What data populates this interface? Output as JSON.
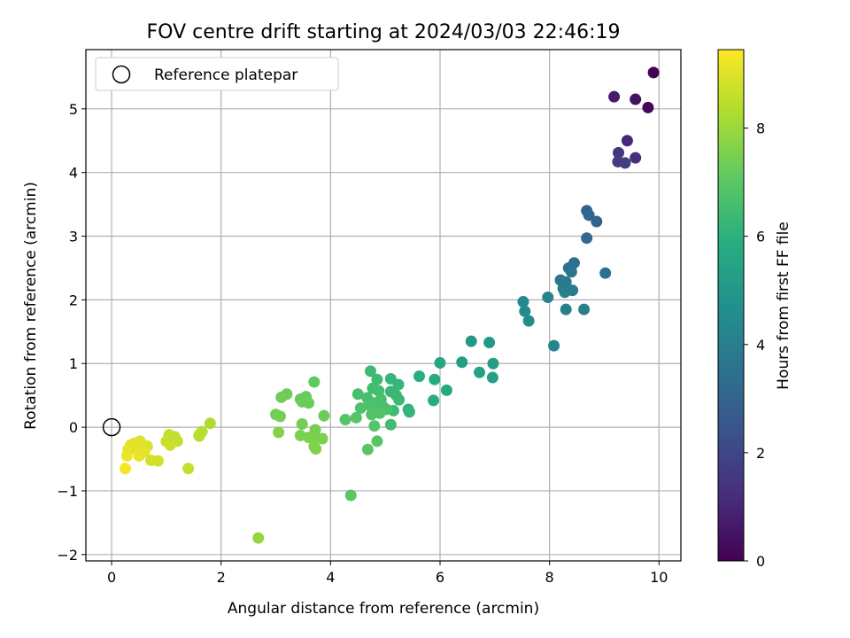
{
  "chart_data": {
    "type": "scatter",
    "title": "FOV centre drift starting at 2024/03/03 22:46:19",
    "xlabel": "Angular distance from reference (arcmin)",
    "ylabel": "Rotation from reference (arcmin)",
    "xlim": [
      -0.47,
      10.4
    ],
    "ylim": [
      -2.1,
      5.93
    ],
    "xticks": [
      0,
      2,
      4,
      6,
      8,
      10
    ],
    "yticks": [
      -2,
      -1,
      0,
      1,
      2,
      3,
      4,
      5
    ],
    "xtick_labels": [
      "0",
      "2",
      "4",
      "6",
      "8",
      "10"
    ],
    "ytick_labels": [
      "−2",
      "−1",
      "0",
      "1",
      "2",
      "3",
      "4",
      "5"
    ],
    "grid": true,
    "legend_position": "top-left",
    "legend": {
      "label": "Reference platepar",
      "marker": "open-circle"
    },
    "reference_point": {
      "x": 0,
      "y": 0
    },
    "colorbar": {
      "label": "Hours from first FF file",
      "colormap": "viridis",
      "range": [
        0,
        9.45
      ],
      "ticks": [
        0,
        2,
        4,
        6,
        8
      ],
      "tick_labels": [
        "0",
        "2",
        "4",
        "6",
        "8"
      ]
    },
    "points": [
      {
        "x": 9.9,
        "y": 5.57,
        "h": 0.05
      },
      {
        "x": 9.8,
        "y": 5.02,
        "h": 0.2
      },
      {
        "x": 9.57,
        "y": 5.15,
        "h": 0.45
      },
      {
        "x": 9.18,
        "y": 5.19,
        "h": 0.75
      },
      {
        "x": 9.42,
        "y": 4.5,
        "h": 1.05
      },
      {
        "x": 9.57,
        "y": 4.23,
        "h": 1.25
      },
      {
        "x": 9.26,
        "y": 4.31,
        "h": 1.45
      },
      {
        "x": 9.25,
        "y": 4.17,
        "h": 1.6
      },
      {
        "x": 9.38,
        "y": 4.15,
        "h": 1.75
      },
      {
        "x": 8.68,
        "y": 3.4,
        "h": 3.0
      },
      {
        "x": 8.72,
        "y": 3.33,
        "h": 3.1
      },
      {
        "x": 8.86,
        "y": 3.23,
        "h": 3.05
      },
      {
        "x": 8.68,
        "y": 2.97,
        "h": 3.25
      },
      {
        "x": 8.45,
        "y": 2.58,
        "h": 3.45
      },
      {
        "x": 8.35,
        "y": 2.5,
        "h": 3.55
      },
      {
        "x": 9.02,
        "y": 2.42,
        "h": 3.5
      },
      {
        "x": 8.4,
        "y": 2.44,
        "h": 3.65
      },
      {
        "x": 8.2,
        "y": 2.31,
        "h": 3.75
      },
      {
        "x": 8.3,
        "y": 2.28,
        "h": 3.8
      },
      {
        "x": 8.25,
        "y": 2.18,
        "h": 3.9
      },
      {
        "x": 8.42,
        "y": 2.15,
        "h": 3.95
      },
      {
        "x": 8.28,
        "y": 2.12,
        "h": 4.0
      },
      {
        "x": 8.3,
        "y": 1.85,
        "h": 4.05
      },
      {
        "x": 8.63,
        "y": 1.85,
        "h": 4.1
      },
      {
        "x": 7.97,
        "y": 2.04,
        "h": 4.2
      },
      {
        "x": 8.08,
        "y": 1.28,
        "h": 4.25
      },
      {
        "x": 7.52,
        "y": 1.97,
        "h": 4.4
      },
      {
        "x": 7.55,
        "y": 1.82,
        "h": 4.5
      },
      {
        "x": 7.62,
        "y": 1.67,
        "h": 4.6
      },
      {
        "x": 6.57,
        "y": 1.35,
        "h": 5.0
      },
      {
        "x": 6.9,
        "y": 1.33,
        "h": 5.0
      },
      {
        "x": 6.4,
        "y": 1.02,
        "h": 5.3
      },
      {
        "x": 6.97,
        "y": 1.0,
        "h": 5.25
      },
      {
        "x": 6.72,
        "y": 0.86,
        "h": 5.4
      },
      {
        "x": 6.96,
        "y": 0.78,
        "h": 5.35
      },
      {
        "x": 6.0,
        "y": 1.01,
        "h": 5.6
      },
      {
        "x": 5.9,
        "y": 0.75,
        "h": 5.8
      },
      {
        "x": 6.12,
        "y": 0.58,
        "h": 5.7
      },
      {
        "x": 5.88,
        "y": 0.42,
        "h": 5.85
      },
      {
        "x": 5.62,
        "y": 0.8,
        "h": 5.9
      },
      {
        "x": 5.42,
        "y": 0.28,
        "h": 6.1
      },
      {
        "x": 5.44,
        "y": 0.24,
        "h": 6.15
      },
      {
        "x": 5.1,
        "y": 0.76,
        "h": 6.2
      },
      {
        "x": 5.24,
        "y": 0.67,
        "h": 6.25
      },
      {
        "x": 5.1,
        "y": 0.56,
        "h": 6.3
      },
      {
        "x": 5.2,
        "y": 0.5,
        "h": 6.3
      },
      {
        "x": 5.25,
        "y": 0.43,
        "h": 6.35
      },
      {
        "x": 5.15,
        "y": 0.26,
        "h": 6.4
      },
      {
        "x": 5.1,
        "y": 0.04,
        "h": 6.5
      },
      {
        "x": 4.73,
        "y": 0.88,
        "h": 6.4
      },
      {
        "x": 4.85,
        "y": 0.75,
        "h": 6.45
      },
      {
        "x": 4.77,
        "y": 0.61,
        "h": 6.5
      },
      {
        "x": 4.88,
        "y": 0.57,
        "h": 6.55
      },
      {
        "x": 4.5,
        "y": 0.52,
        "h": 6.6
      },
      {
        "x": 4.67,
        "y": 0.46,
        "h": 6.6
      },
      {
        "x": 4.92,
        "y": 0.44,
        "h": 6.6
      },
      {
        "x": 4.8,
        "y": 0.38,
        "h": 6.65
      },
      {
        "x": 4.7,
        "y": 0.35,
        "h": 6.7
      },
      {
        "x": 4.95,
        "y": 0.33,
        "h": 6.65
      },
      {
        "x": 4.55,
        "y": 0.3,
        "h": 6.75
      },
      {
        "x": 4.85,
        "y": 0.3,
        "h": 6.7
      },
      {
        "x": 5.02,
        "y": 0.28,
        "h": 6.7
      },
      {
        "x": 4.9,
        "y": 0.22,
        "h": 6.8
      },
      {
        "x": 4.75,
        "y": 0.2,
        "h": 6.8
      },
      {
        "x": 4.47,
        "y": 0.15,
        "h": 6.85
      },
      {
        "x": 4.27,
        "y": 0.12,
        "h": 6.9
      },
      {
        "x": 4.8,
        "y": 0.02,
        "h": 6.85
      },
      {
        "x": 4.85,
        "y": -0.22,
        "h": 6.9
      },
      {
        "x": 4.68,
        "y": -0.35,
        "h": 6.95
      },
      {
        "x": 4.37,
        "y": -1.07,
        "h": 7.0
      },
      {
        "x": 3.7,
        "y": 0.71,
        "h": 7.1
      },
      {
        "x": 3.55,
        "y": 0.48,
        "h": 7.2
      },
      {
        "x": 3.45,
        "y": 0.44,
        "h": 7.2
      },
      {
        "x": 3.48,
        "y": 0.4,
        "h": 7.25
      },
      {
        "x": 3.6,
        "y": 0.38,
        "h": 7.25
      },
      {
        "x": 3.2,
        "y": 0.52,
        "h": 7.3
      },
      {
        "x": 3.1,
        "y": 0.47,
        "h": 7.35
      },
      {
        "x": 3.0,
        "y": 0.2,
        "h": 7.4
      },
      {
        "x": 3.08,
        "y": 0.17,
        "h": 7.4
      },
      {
        "x": 3.88,
        "y": 0.18,
        "h": 7.3
      },
      {
        "x": 3.48,
        "y": 0.05,
        "h": 7.4
      },
      {
        "x": 3.72,
        "y": -0.04,
        "h": 7.45
      },
      {
        "x": 3.45,
        "y": -0.13,
        "h": 7.5
      },
      {
        "x": 3.6,
        "y": -0.16,
        "h": 7.5
      },
      {
        "x": 3.68,
        "y": -0.18,
        "h": 7.55
      },
      {
        "x": 3.85,
        "y": -0.18,
        "h": 7.55
      },
      {
        "x": 3.7,
        "y": -0.3,
        "h": 7.6
      },
      {
        "x": 3.73,
        "y": -0.34,
        "h": 7.6
      },
      {
        "x": 3.05,
        "y": -0.08,
        "h": 7.65
      },
      {
        "x": 2.68,
        "y": -1.74,
        "h": 7.9
      },
      {
        "x": 1.8,
        "y": 0.06,
        "h": 8.3
      },
      {
        "x": 1.65,
        "y": -0.07,
        "h": 8.4
      },
      {
        "x": 1.6,
        "y": -0.12,
        "h": 8.45
      },
      {
        "x": 1.6,
        "y": -0.14,
        "h": 8.45
      },
      {
        "x": 1.15,
        "y": -0.15,
        "h": 8.55
      },
      {
        "x": 1.05,
        "y": -0.12,
        "h": 8.6
      },
      {
        "x": 1.0,
        "y": -0.22,
        "h": 8.65
      },
      {
        "x": 1.1,
        "y": -0.24,
        "h": 8.65
      },
      {
        "x": 1.2,
        "y": -0.22,
        "h": 8.6
      },
      {
        "x": 1.07,
        "y": -0.28,
        "h": 8.7
      },
      {
        "x": 1.4,
        "y": -0.65,
        "h": 8.6
      },
      {
        "x": 0.85,
        "y": -0.53,
        "h": 8.8
      },
      {
        "x": 0.72,
        "y": -0.52,
        "h": 8.85
      },
      {
        "x": 0.65,
        "y": -0.3,
        "h": 8.9
      },
      {
        "x": 0.52,
        "y": -0.22,
        "h": 8.95
      },
      {
        "x": 0.55,
        "y": -0.28,
        "h": 9.0
      },
      {
        "x": 0.42,
        "y": -0.25,
        "h": 9.0
      },
      {
        "x": 0.35,
        "y": -0.28,
        "h": 9.05
      },
      {
        "x": 0.3,
        "y": -0.35,
        "h": 9.1
      },
      {
        "x": 0.45,
        "y": -0.35,
        "h": 9.05
      },
      {
        "x": 0.55,
        "y": -0.4,
        "h": 9.1
      },
      {
        "x": 0.5,
        "y": -0.45,
        "h": 9.15
      },
      {
        "x": 0.28,
        "y": -0.45,
        "h": 9.2
      },
      {
        "x": 0.6,
        "y": -0.38,
        "h": 9.1
      },
      {
        "x": 0.25,
        "y": -0.65,
        "h": 9.3
      }
    ]
  }
}
